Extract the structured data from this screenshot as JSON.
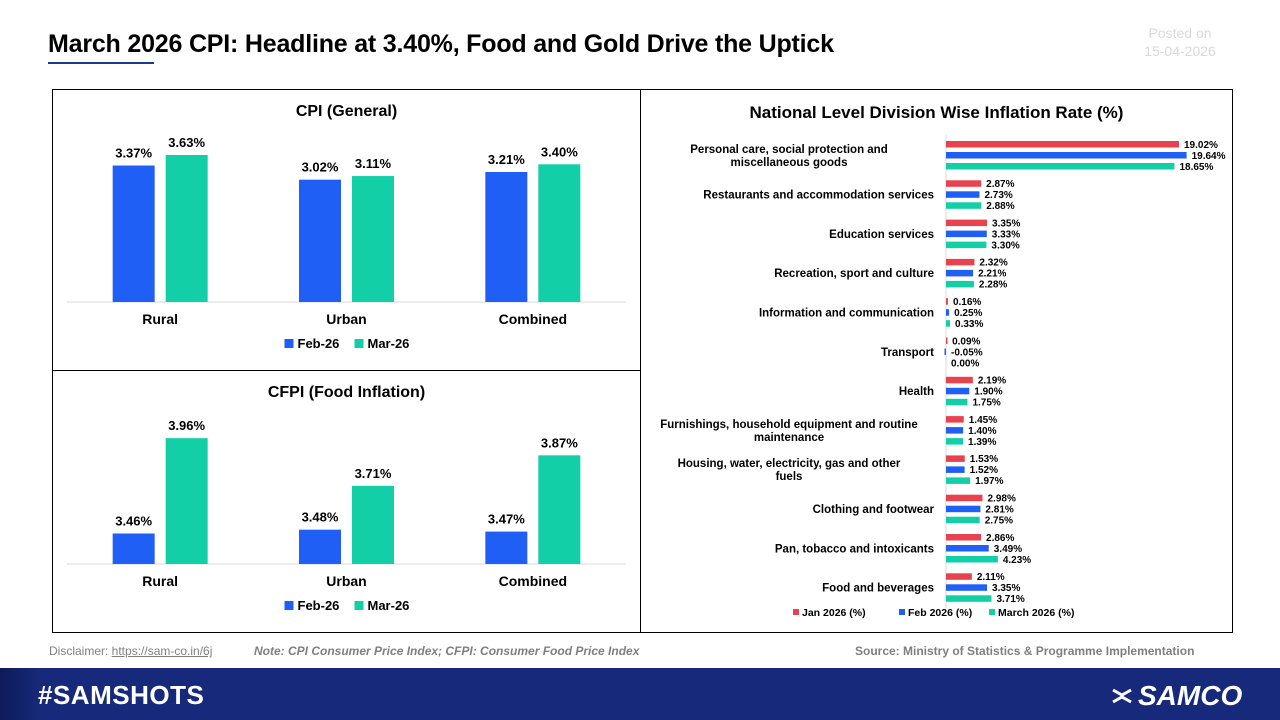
{
  "header": {
    "title": "March 2026 CPI: Headline at 3.40%, Food and Gold Drive the Uptick",
    "posted_label": "Posted on",
    "posted_date": "15-04-2026"
  },
  "footer_bar": {
    "disclaimer_label": "Disclaimer: ",
    "disclaimer_link": "https://sam-co.in/6j",
    "note": "Note: CPI Consumer Price Index; CFPI: Consumer Food Price Index",
    "source": "Source:  Ministry of Statistics & Programme Implementation",
    "hashtag": "#SAMSHOTS",
    "brand": "SAMCO"
  },
  "colors": {
    "feb": "#1f5ff5",
    "mar": "#12cfa8",
    "jan": "#e8424f",
    "border": "#000000",
    "footer_bg": "#17297a"
  },
  "chart_data": [
    {
      "type": "bar",
      "title": "CPI (General)",
      "categories": [
        "Rural",
        "Urban",
        "Combined"
      ],
      "series": [
        {
          "name": "Feb-26",
          "values": [
            3.37,
            3.02,
            3.21
          ],
          "labels": [
            "3.37%",
            "3.02%",
            "3.21%"
          ]
        },
        {
          "name": "Mar-26",
          "values": [
            3.63,
            3.11,
            3.4
          ],
          "labels": [
            "3.63%",
            "3.11%",
            "3.40%"
          ]
        }
      ],
      "ylim": [
        0,
        4.0
      ],
      "grid": false,
      "legend": "bottom"
    },
    {
      "type": "bar",
      "title": "CFPI (Food Inflation)",
      "categories": [
        "Rural",
        "Urban",
        "Combined"
      ],
      "series": [
        {
          "name": "Feb-26",
          "values": [
            3.46,
            3.48,
            3.47
          ],
          "labels": [
            "3.46%",
            "3.48%",
            "3.47%"
          ]
        },
        {
          "name": "Mar-26",
          "values": [
            3.96,
            3.71,
            3.87
          ],
          "labels": [
            "3.96%",
            "3.71%",
            "3.87%"
          ]
        }
      ],
      "ylim": [
        3.3,
        4.05
      ],
      "grid": false,
      "legend": "bottom"
    },
    {
      "type": "bar",
      "orientation": "horizontal",
      "title": "National Level Division Wise Inflation Rate (%)",
      "categories": [
        "Personal care, social protection and miscellaneous goods",
        "Restaurants and accommodation services",
        "Education services",
        "Recreation, sport and culture",
        "Information and communication",
        "Transport",
        "Health",
        "Furnishings, household equipment and routine maintenance",
        "Housing, water, electricity, gas and other fuels",
        "Clothing and footwear",
        "Pan, tobacco and intoxicants",
        "Food and beverages"
      ],
      "series": [
        {
          "name": "Jan 2026 (%)",
          "values": [
            19.02,
            2.87,
            3.35,
            2.32,
            0.16,
            0.09,
            2.19,
            1.45,
            1.53,
            2.98,
            2.86,
            2.11
          ],
          "labels": [
            "19.02%",
            "2.87%",
            "3.35%",
            "2.32%",
            "0.16%",
            "0.09%",
            "2.19%",
            "1.45%",
            "1.53%",
            "2.98%",
            "2.86%",
            "2.11%"
          ]
        },
        {
          "name": "Feb 2026 (%)",
          "values": [
            19.64,
            2.73,
            3.33,
            2.21,
            0.25,
            -0.05,
            1.9,
            1.4,
            1.52,
            2.81,
            3.49,
            3.35
          ],
          "labels": [
            "19.64%",
            "2.73%",
            "3.33%",
            "2.21%",
            "0.25%",
            "-0.05%",
            "1.90%",
            "1.40%",
            "1.52%",
            "2.81%",
            "3.49%",
            "3.35%"
          ]
        },
        {
          "name": "March 2026 (%)",
          "values": [
            18.65,
            2.88,
            3.3,
            2.28,
            0.33,
            0.0,
            1.75,
            1.39,
            1.97,
            2.75,
            4.23,
            3.71
          ],
          "labels": [
            "18.65%",
            "2.88%",
            "3.30%",
            "2.28%",
            "0.33%",
            "0.00%",
            "1.75%",
            "1.39%",
            "1.97%",
            "2.75%",
            "4.23%",
            "3.71%"
          ]
        }
      ],
      "xlim": [
        0,
        20
      ],
      "grid": false,
      "legend": "bottom"
    }
  ]
}
